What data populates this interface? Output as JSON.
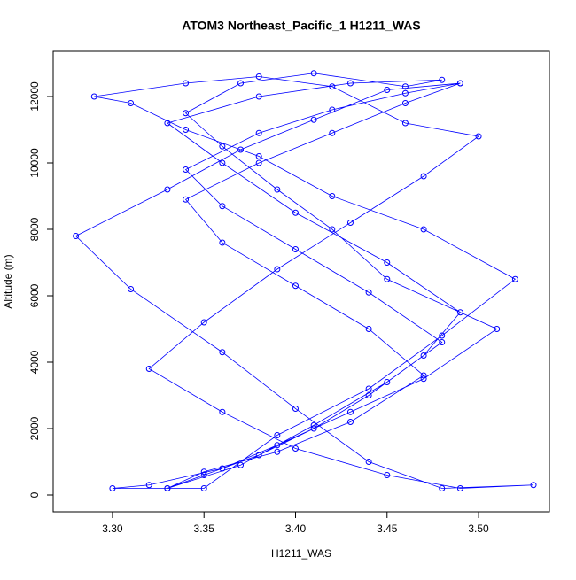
{
  "chart_data": {
    "type": "line",
    "title": "ATOM3 Northeast_Pacific_1 H1211_WAS",
    "x_label": "H1211_WAS",
    "y_label": "Altitude (m)",
    "x": [
      3.33,
      3.35,
      3.38,
      3.41,
      3.44,
      3.47,
      3.49,
      3.45,
      3.4,
      3.36,
      3.33,
      3.38,
      3.43,
      3.48,
      3.46,
      3.41,
      3.37,
      3.34,
      3.36,
      3.39,
      3.42,
      3.45,
      3.51,
      3.47,
      3.43,
      3.39,
      3.36,
      3.32,
      3.3,
      3.35,
      3.39,
      3.44,
      3.48,
      3.52,
      3.47,
      3.42,
      3.38,
      3.34,
      3.31,
      3.29,
      3.34,
      3.38,
      3.42,
      3.46,
      3.5,
      3.47,
      3.43,
      3.39,
      3.35,
      3.32,
      3.36,
      3.4,
      3.45,
      3.49,
      3.53,
      3.48,
      3.44,
      3.4,
      3.36,
      3.31,
      3.28,
      3.33,
      3.37,
      3.41,
      3.45,
      3.49,
      3.46,
      3.42,
      3.38,
      3.34,
      3.36,
      3.4,
      3.44,
      3.47,
      3.43,
      3.39,
      3.35,
      3.33,
      3.37,
      3.41,
      3.45,
      3.48,
      3.44,
      3.4,
      3.36,
      3.34,
      3.38,
      3.42,
      3.46,
      3.49
    ],
    "series": [
      {
        "color": "#0000ff",
        "values": [
          200,
          600,
          1200,
          2000,
          3000,
          4200,
          5500,
          7000,
          8500,
          10000,
          11200,
          12000,
          12400,
          12500,
          12300,
          12700,
          12400,
          11500,
          10500,
          9200,
          8000,
          6500,
          5000,
          3500,
          2500,
          1500,
          800,
          300,
          200,
          200,
          1800,
          3200,
          4800,
          6500,
          8000,
          9000,
          10200,
          11000,
          11800,
          12000,
          12400,
          12600,
          12300,
          11200,
          10800,
          9600,
          8200,
          6800,
          5200,
          3800,
          2500,
          1400,
          600,
          200,
          300,
          200,
          1000,
          2600,
          4300,
          6200,
          7800,
          9200,
          10400,
          11300,
          12200,
          12400,
          11800,
          10900,
          10000,
          8900,
          7600,
          6300,
          5000,
          3600,
          2200,
          1300,
          700,
          200,
          900,
          2100,
          3400,
          4600,
          6100,
          7400,
          8700,
          9800,
          10900,
          11600,
          12100,
          12400
        ]
      }
    ],
    "xlim": [
      3.2676,
      3.5387
    ],
    "ylim": [
      -507,
      13360
    ],
    "xticks": [
      {
        "value": 3.3,
        "label": "3.30"
      },
      {
        "value": 3.35,
        "label": "3.35"
      },
      {
        "value": 3.4,
        "label": "3.40"
      },
      {
        "value": 3.45,
        "label": "3.45"
      },
      {
        "value": 3.5,
        "label": "3.50"
      }
    ],
    "yticks": [
      0,
      2000,
      4000,
      6000,
      8000,
      10000,
      12000
    ]
  }
}
